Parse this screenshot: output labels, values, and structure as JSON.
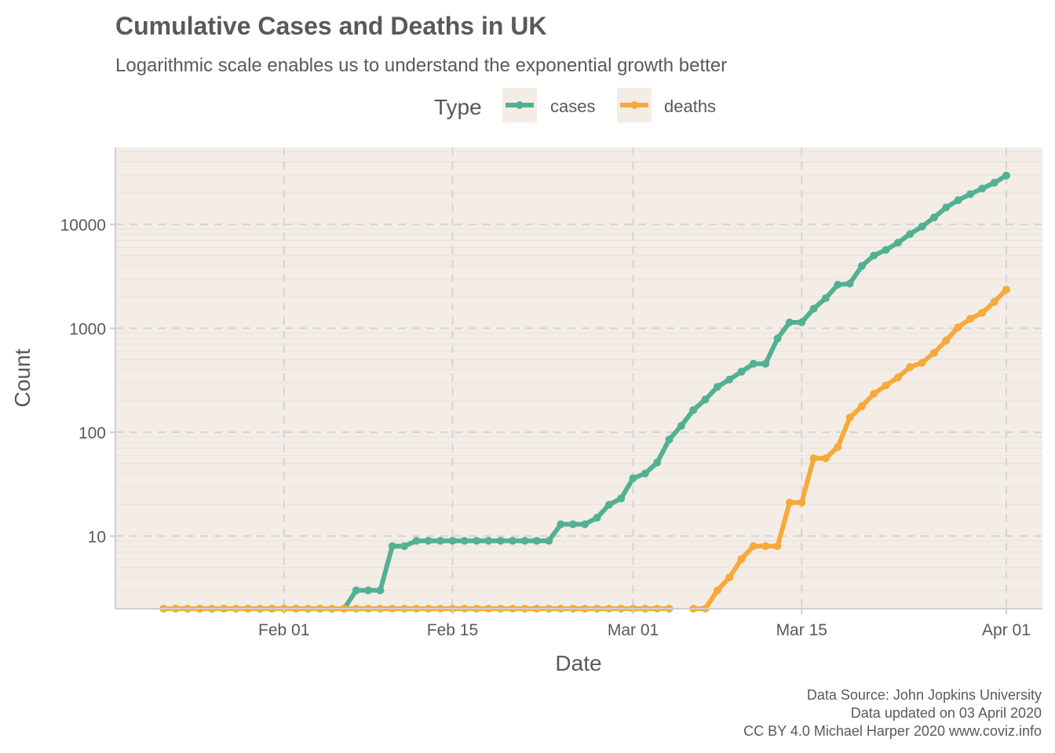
{
  "chart_data": {
    "type": "line",
    "title": "Cumulative Cases and Deaths in UK",
    "subtitle": "Logarithmic scale enables us to understand the exponential growth better",
    "xlabel": "Date",
    "ylabel": "Count",
    "x_scale": "date",
    "y_scale": "log10",
    "xlim": [
      "2020-01-18",
      "2020-04-04"
    ],
    "ylim": [
      2,
      55000
    ],
    "x_ticks": [
      {
        "value": "2020-02-01",
        "label": "Feb 01"
      },
      {
        "value": "2020-02-15",
        "label": "Feb 15"
      },
      {
        "value": "2020-03-01",
        "label": "Mar 01"
      },
      {
        "value": "2020-03-15",
        "label": "Mar 15"
      },
      {
        "value": "2020-04-01",
        "label": "Apr 01"
      }
    ],
    "y_ticks": [
      {
        "value": 10,
        "label": "10"
      },
      {
        "value": 100,
        "label": "100"
      },
      {
        "value": 1000,
        "label": "1000"
      },
      {
        "value": 10000,
        "label": "10000"
      }
    ],
    "grid": true,
    "legend": {
      "title": "Type",
      "position": "top",
      "entries": [
        "cases",
        "deaths"
      ]
    },
    "series": [
      {
        "name": "cases",
        "color": "#52B193",
        "points": [
          [
            "2020-01-22",
            0
          ],
          [
            "2020-01-23",
            0
          ],
          [
            "2020-01-24",
            0
          ],
          [
            "2020-01-25",
            0
          ],
          [
            "2020-01-26",
            0
          ],
          [
            "2020-01-27",
            0
          ],
          [
            "2020-01-28",
            0
          ],
          [
            "2020-01-29",
            0
          ],
          [
            "2020-01-30",
            0
          ],
          [
            "2020-01-31",
            2
          ],
          [
            "2020-02-01",
            2
          ],
          [
            "2020-02-02",
            2
          ],
          [
            "2020-02-03",
            2
          ],
          [
            "2020-02-04",
            2
          ],
          [
            "2020-02-05",
            2
          ],
          [
            "2020-02-06",
            2
          ],
          [
            "2020-02-07",
            3
          ],
          [
            "2020-02-08",
            3
          ],
          [
            "2020-02-09",
            3
          ],
          [
            "2020-02-10",
            8
          ],
          [
            "2020-02-11",
            8
          ],
          [
            "2020-02-12",
            9
          ],
          [
            "2020-02-13",
            9
          ],
          [
            "2020-02-14",
            9
          ],
          [
            "2020-02-15",
            9
          ],
          [
            "2020-02-16",
            9
          ],
          [
            "2020-02-17",
            9
          ],
          [
            "2020-02-18",
            9
          ],
          [
            "2020-02-19",
            9
          ],
          [
            "2020-02-20",
            9
          ],
          [
            "2020-02-21",
            9
          ],
          [
            "2020-02-22",
            9
          ],
          [
            "2020-02-23",
            9
          ],
          [
            "2020-02-24",
            13
          ],
          [
            "2020-02-25",
            13
          ],
          [
            "2020-02-26",
            13
          ],
          [
            "2020-02-27",
            15
          ],
          [
            "2020-02-28",
            20
          ],
          [
            "2020-02-29",
            23
          ],
          [
            "2020-03-01",
            36
          ],
          [
            "2020-03-02",
            40
          ],
          [
            "2020-03-03",
            51
          ],
          [
            "2020-03-04",
            85
          ],
          [
            "2020-03-05",
            115
          ],
          [
            "2020-03-06",
            163
          ],
          [
            "2020-03-07",
            206
          ],
          [
            "2020-03-08",
            273
          ],
          [
            "2020-03-09",
            321
          ],
          [
            "2020-03-10",
            382
          ],
          [
            "2020-03-11",
            456
          ],
          [
            "2020-03-12",
            456
          ],
          [
            "2020-03-13",
            798
          ],
          [
            "2020-03-14",
            1140
          ],
          [
            "2020-03-15",
            1140
          ],
          [
            "2020-03-16",
            1543
          ],
          [
            "2020-03-17",
            1950
          ],
          [
            "2020-03-18",
            2626
          ],
          [
            "2020-03-19",
            2689
          ],
          [
            "2020-03-20",
            3983
          ],
          [
            "2020-03-21",
            5018
          ],
          [
            "2020-03-22",
            5683
          ],
          [
            "2020-03-23",
            6650
          ],
          [
            "2020-03-24",
            8077
          ],
          [
            "2020-03-25",
            9529
          ],
          [
            "2020-03-26",
            11658
          ],
          [
            "2020-03-27",
            14543
          ],
          [
            "2020-03-28",
            17089
          ],
          [
            "2020-03-29",
            19522
          ],
          [
            "2020-03-30",
            22141
          ],
          [
            "2020-03-31",
            25150
          ],
          [
            "2020-04-01",
            29474
          ]
        ]
      },
      {
        "name": "deaths",
        "color": "#F7A93B",
        "points": [
          [
            "2020-01-22",
            0
          ],
          [
            "2020-01-23",
            0
          ],
          [
            "2020-01-24",
            0
          ],
          [
            "2020-01-25",
            0
          ],
          [
            "2020-01-26",
            0
          ],
          [
            "2020-01-27",
            0
          ],
          [
            "2020-01-28",
            0
          ],
          [
            "2020-01-29",
            0
          ],
          [
            "2020-01-30",
            0
          ],
          [
            "2020-01-31",
            0
          ],
          [
            "2020-02-01",
            0
          ],
          [
            "2020-02-02",
            0
          ],
          [
            "2020-02-03",
            0
          ],
          [
            "2020-02-04",
            0
          ],
          [
            "2020-02-05",
            0
          ],
          [
            "2020-02-06",
            0
          ],
          [
            "2020-02-07",
            0
          ],
          [
            "2020-02-08",
            0
          ],
          [
            "2020-02-09",
            0
          ],
          [
            "2020-02-10",
            0
          ],
          [
            "2020-02-11",
            0
          ],
          [
            "2020-02-12",
            0
          ],
          [
            "2020-02-13",
            0
          ],
          [
            "2020-02-14",
            0
          ],
          [
            "2020-02-15",
            0
          ],
          [
            "2020-02-16",
            0
          ],
          [
            "2020-02-17",
            0
          ],
          [
            "2020-02-18",
            0
          ],
          [
            "2020-02-19",
            0
          ],
          [
            "2020-02-20",
            0
          ],
          [
            "2020-02-21",
            0
          ],
          [
            "2020-02-22",
            0
          ],
          [
            "2020-02-23",
            0
          ],
          [
            "2020-02-24",
            0
          ],
          [
            "2020-02-25",
            0
          ],
          [
            "2020-02-26",
            0
          ],
          [
            "2020-02-27",
            0
          ],
          [
            "2020-02-28",
            0
          ],
          [
            "2020-02-29",
            0
          ],
          [
            "2020-03-01",
            0
          ],
          [
            "2020-03-02",
            0
          ],
          [
            "2020-03-03",
            0
          ],
          [
            "2020-03-04",
            0
          ],
          [
            "2020-03-06",
            2
          ],
          [
            "2020-03-07",
            2
          ],
          [
            "2020-03-08",
            3
          ],
          [
            "2020-03-09",
            4
          ],
          [
            "2020-03-10",
            6
          ],
          [
            "2020-03-11",
            8
          ],
          [
            "2020-03-12",
            8
          ],
          [
            "2020-03-13",
            8
          ],
          [
            "2020-03-14",
            21
          ],
          [
            "2020-03-15",
            21
          ],
          [
            "2020-03-16",
            56
          ],
          [
            "2020-03-17",
            56
          ],
          [
            "2020-03-18",
            72
          ],
          [
            "2020-03-19",
            138
          ],
          [
            "2020-03-20",
            178
          ],
          [
            "2020-03-21",
            234
          ],
          [
            "2020-03-22",
            282
          ],
          [
            "2020-03-23",
            336
          ],
          [
            "2020-03-24",
            423
          ],
          [
            "2020-03-25",
            466
          ],
          [
            "2020-03-26",
            580
          ],
          [
            "2020-03-27",
            761
          ],
          [
            "2020-03-28",
            1021
          ],
          [
            "2020-03-29",
            1231
          ],
          [
            "2020-03-30",
            1411
          ],
          [
            "2020-03-31",
            1793
          ],
          [
            "2020-04-01",
            2357
          ]
        ]
      }
    ],
    "caption": [
      "Data Source: John Jopkins University",
      "Data updated on 03 April 2020",
      "CC BY 4.0 Michael Harper 2020 www.coviz.info"
    ],
    "colors": {
      "panel_background": "#F3EDE6",
      "grid_major": "#D3D3D3",
      "grid_minor": "#E6E1DA",
      "text": "#595959"
    }
  }
}
